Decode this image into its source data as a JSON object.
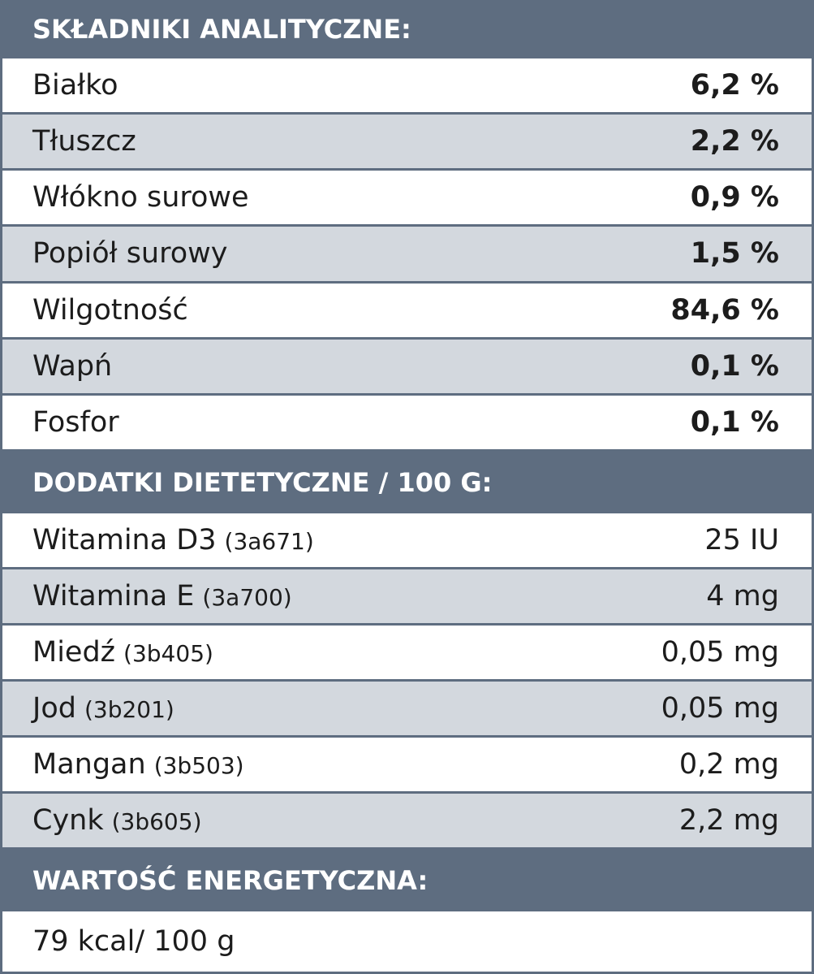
{
  "sections": [
    {
      "title": "SKŁADNIKI ANALITYCZNE:",
      "rows": [
        {
          "name": "Białko",
          "value": "6,2 %"
        },
        {
          "name": "Tłuszcz",
          "value": "2,2 %"
        },
        {
          "name": "Włókno surowe",
          "value": "0,9 %"
        },
        {
          "name": "Popiół surowy",
          "value": "1,5 %"
        },
        {
          "name": "Wilgotność",
          "value": "84,6 %"
        },
        {
          "name": "Wapń",
          "value": "0,1 %"
        },
        {
          "name": "Fosfor",
          "value": "0,1 %"
        }
      ]
    },
    {
      "title": "DODATKI DIETETYCZNE / 100 G:",
      "rows": [
        {
          "name": "Witamina D3",
          "code": "(3a671)",
          "value": "25 IU"
        },
        {
          "name": "Witamina E",
          "code": "(3a700)",
          "value": "4 mg"
        },
        {
          "name": "Miedź",
          "code": "(3b405)",
          "value": "0,05 mg"
        },
        {
          "name": "Jod",
          "code": "(3b201)",
          "value": "0,05 mg"
        },
        {
          "name": "Mangan",
          "code": "(3b503)",
          "value": "0,2 mg"
        },
        {
          "name": "Cynk",
          "code": "(3b605)",
          "value": "2,2 mg"
        }
      ]
    },
    {
      "title": "WARTOŚĆ ENERGETYCZNA:",
      "rows": [
        {
          "name": "79 kcal/ 100 g"
        }
      ]
    }
  ]
}
